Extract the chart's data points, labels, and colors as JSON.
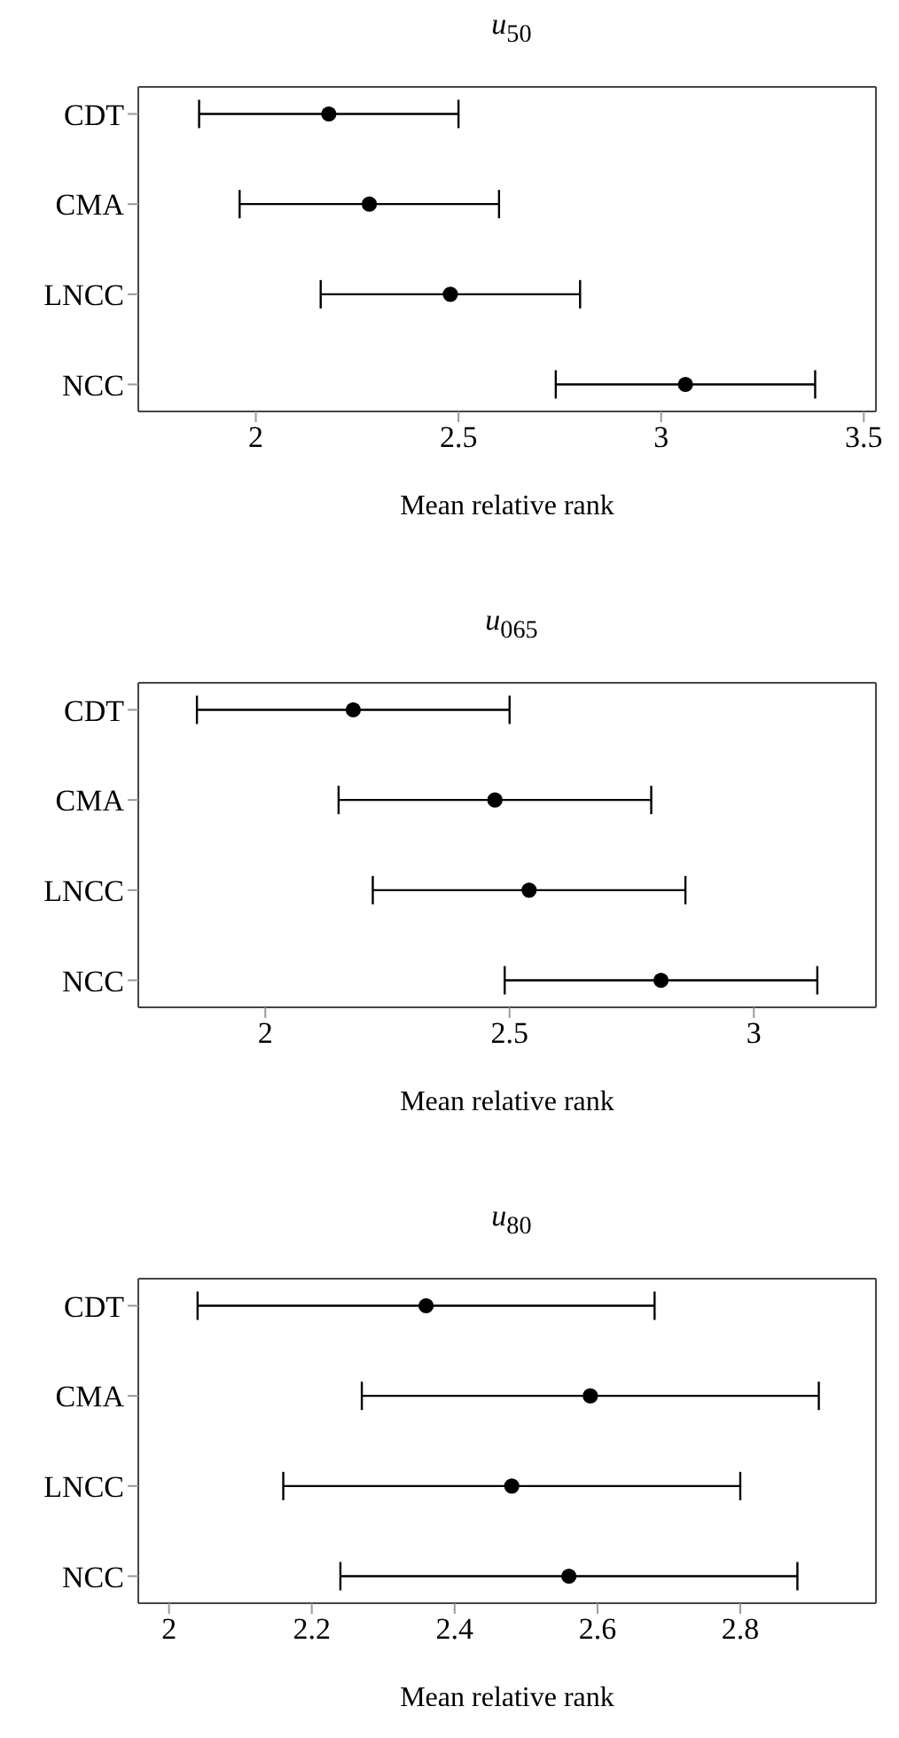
{
  "chart_data": [
    {
      "type": "scatter",
      "orientation": "horizontal",
      "title": "u$_{50}$",
      "xlabel": "Mean relative rank",
      "categories": [
        "CDT",
        "CMA",
        "LNCC",
        "NCC"
      ],
      "values": [
        2.18,
        2.28,
        2.48,
        3.06
      ],
      "errors": [
        0.32,
        0.32,
        0.32,
        0.32
      ],
      "color": "#000000",
      "marker": "circle",
      "xlim": [
        1.71,
        3.53
      ],
      "xticks": [
        2,
        2.5,
        3,
        3.5
      ]
    },
    {
      "type": "scatter",
      "orientation": "horizontal",
      "title": "u$_{065}$",
      "xlabel": "Mean relative rank",
      "categories": [
        "CDT",
        "CMA",
        "LNCC",
        "NCC"
      ],
      "values": [
        2.18,
        2.47,
        2.54,
        2.81
      ],
      "errors": [
        0.32,
        0.32,
        0.32,
        0.32
      ],
      "color": "#000000",
      "marker": "circle",
      "xlim": [
        1.74,
        3.25
      ],
      "xticks": [
        2,
        2.5,
        3
      ]
    },
    {
      "type": "scatter",
      "orientation": "horizontal",
      "title": "u$_{80}$",
      "xlabel": "Mean relative rank",
      "categories": [
        "CDT",
        "CMA",
        "LNCC",
        "NCC"
      ],
      "values": [
        2.36,
        2.59,
        2.48,
        2.56
      ],
      "errors": [
        0.32,
        0.32,
        0.32,
        0.32
      ],
      "color": "#000000",
      "marker": "circle",
      "xlim": [
        1.957,
        2.99
      ],
      "xticks": [
        2,
        2.2,
        2.4,
        2.6,
        2.8
      ]
    }
  ]
}
